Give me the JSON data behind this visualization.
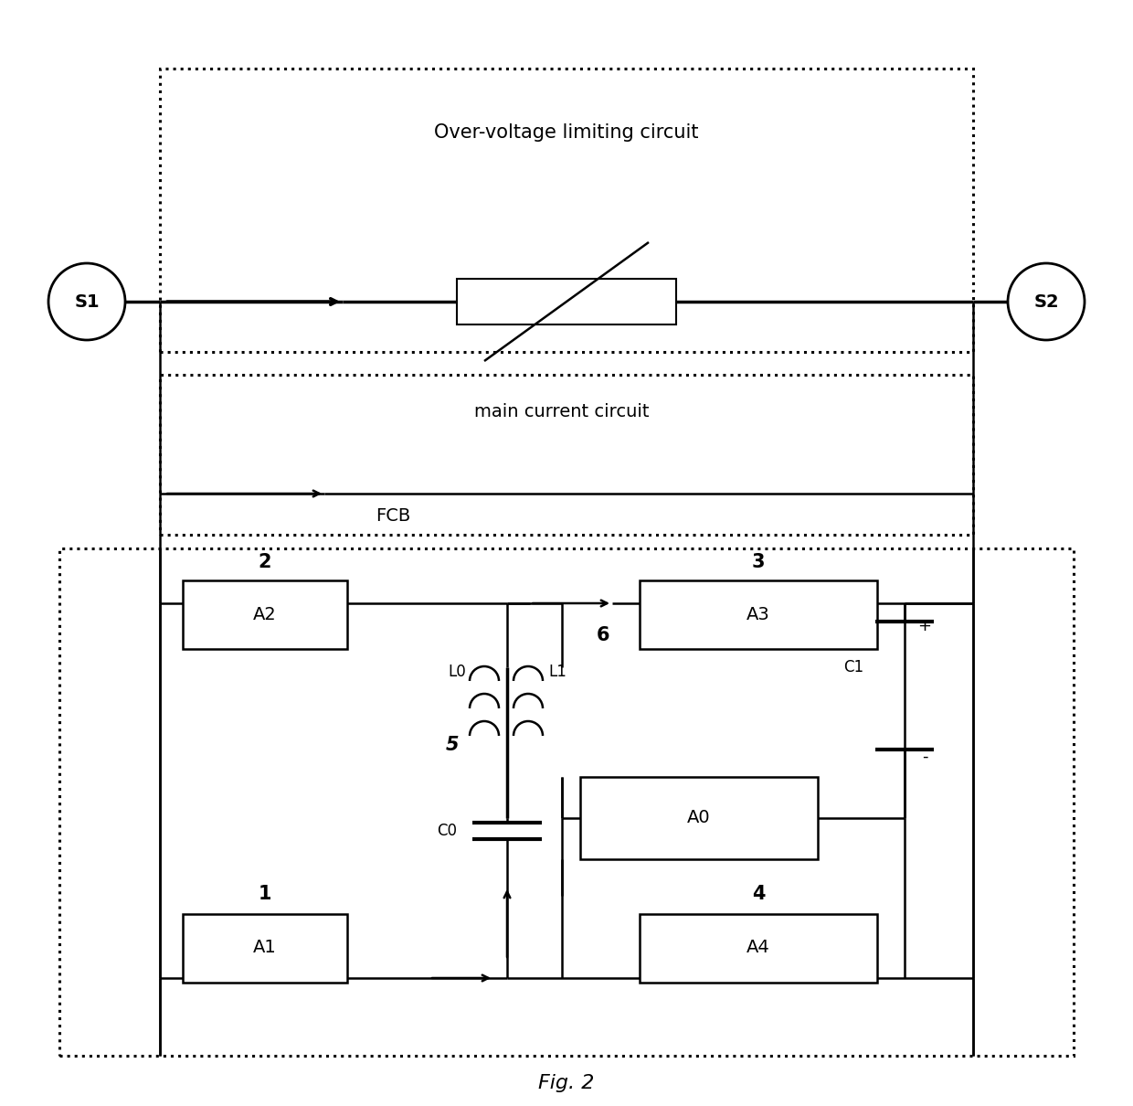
{
  "fig_width": 12.4,
  "fig_height": 12.1,
  "dpi": 100,
  "bg_color": "#ffffff",
  "overvoltage_label": "Over-voltage limiting circuit",
  "main_current_label": "main current circuit",
  "fcb_label": "FCB",
  "fig_label": "Fig. 2",
  "s1_label": "S1",
  "s2_label": "S2",
  "A0": "A0",
  "A1": "A1",
  "A2": "A2",
  "A3": "A3",
  "A4": "A4",
  "L0": "L0",
  "L1": "L1",
  "C0": "C0",
  "C1": "C1",
  "n1": "1",
  "n2": "2",
  "n3": "3",
  "n4": "4",
  "n5": "5",
  "n6": "6",
  "lw": 1.8,
  "lw_thick": 2.5,
  "lw_dot": 2.2
}
